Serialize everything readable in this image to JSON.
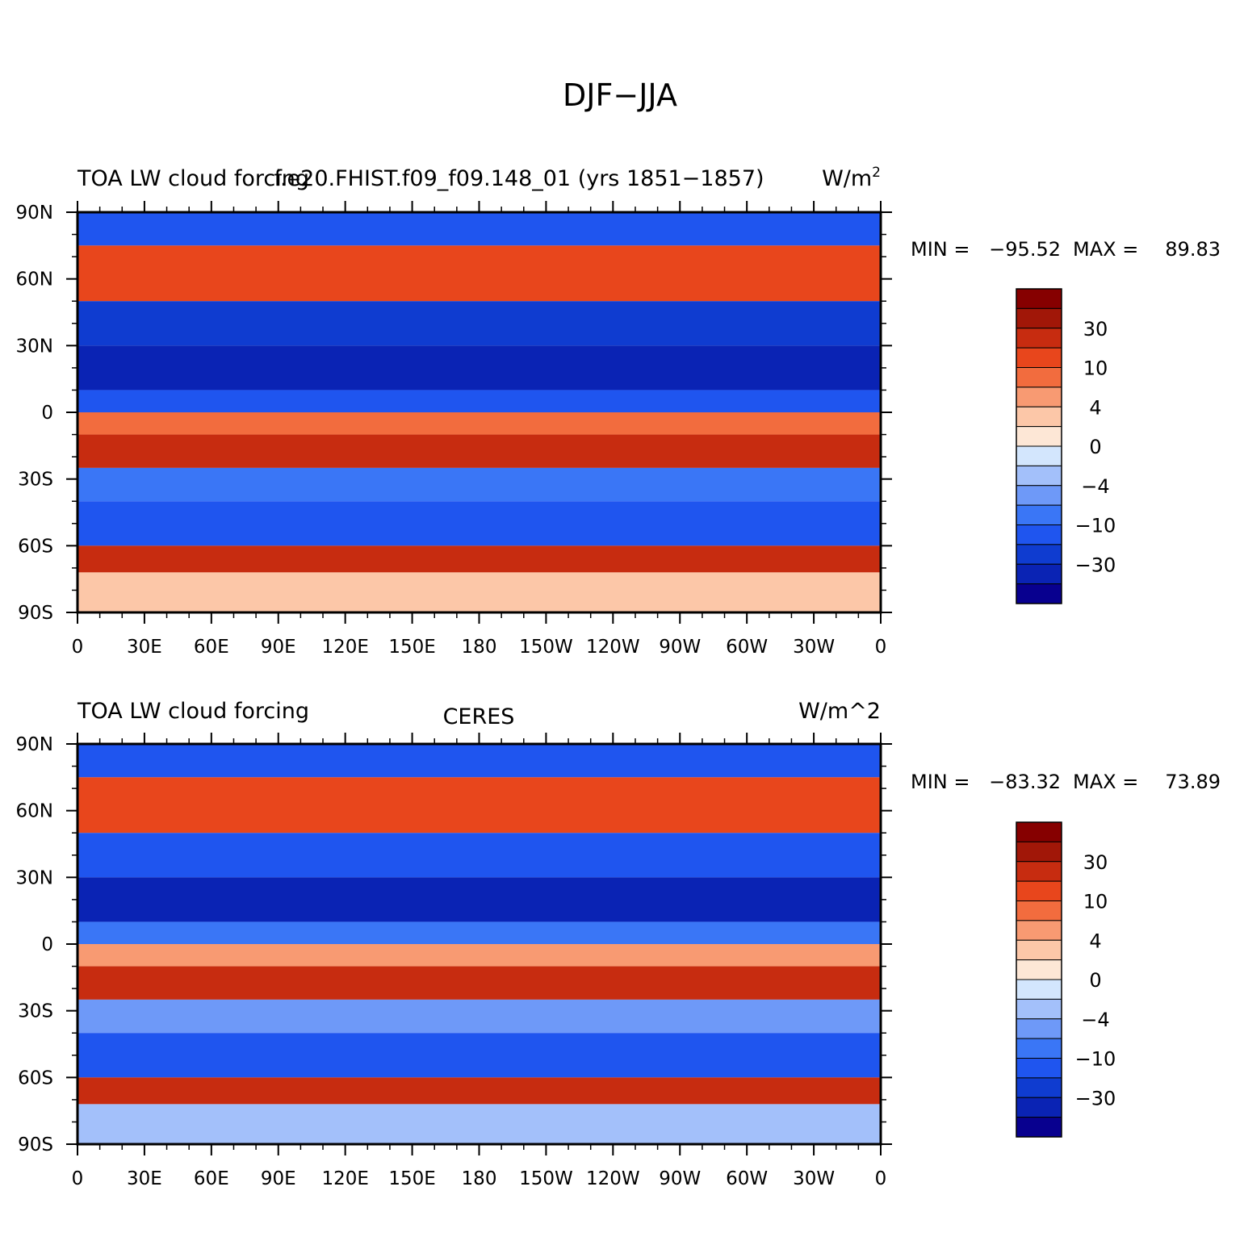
{
  "suptitle": "DJF−JJA",
  "colorbar": {
    "colors": [
      "#08008f",
      "#0a23b4",
      "#0f3cd0",
      "#1f55ef",
      "#3a76f6",
      "#6e99f8",
      "#a3c0fa",
      "#d3e6fd",
      "#fde7d6",
      "#fcc7a8",
      "#f89a72",
      "#f26c3e",
      "#e8461c",
      "#c72c10",
      "#a11708",
      "#860000"
    ],
    "ticks": [
      "30",
      "10",
      "4",
      "0",
      "−4",
      "−10",
      "−30"
    ]
  },
  "chart_data": [
    {
      "type": "heatmap",
      "left_title": "TOA LW cloud forcing",
      "center_title": "f.e20.FHIST.f09_f09.148_01 (yrs 1851−1857)",
      "units": "W/m",
      "units_superscript": "2",
      "stats": {
        "min_label": "MIN =",
        "min": "−95.52",
        "max_label": "MAX =",
        "max": "89.83"
      },
      "xticks": [
        "0",
        "30E",
        "60E",
        "90E",
        "120E",
        "150E",
        "180",
        "150W",
        "120W",
        "90W",
        "60W",
        "30W",
        "0"
      ],
      "yticks": [
        "90N",
        "60N",
        "30N",
        "0",
        "30S",
        "60S",
        "90S"
      ],
      "xlim": [
        0,
        360
      ],
      "ylim": [
        -90,
        90
      ],
      "levels": [
        -50,
        -40,
        -30,
        -20,
        -10,
        -6,
        -4,
        -2,
        0,
        2,
        4,
        6,
        10,
        20,
        30,
        40,
        50
      ],
      "zonal_bands": [
        {
          "lat": [
            75,
            90
          ],
          "value": -15
        },
        {
          "lat": [
            50,
            75
          ],
          "value": 18
        },
        {
          "lat": [
            30,
            50
          ],
          "value": -25
        },
        {
          "lat": [
            10,
            30
          ],
          "value": -35
        },
        {
          "lat": [
            0,
            10
          ],
          "value": -12
        },
        {
          "lat": [
            -10,
            0
          ],
          "value": 6
        },
        {
          "lat": [
            -25,
            -10
          ],
          "value": 28
        },
        {
          "lat": [
            -40,
            -25
          ],
          "value": -8
        },
        {
          "lat": [
            -60,
            -40
          ],
          "value": -20
        },
        {
          "lat": [
            -72,
            -60
          ],
          "value": 22
        },
        {
          "lat": [
            -90,
            -72
          ],
          "value": 3
        }
      ]
    },
    {
      "type": "heatmap",
      "left_title": "TOA LW cloud forcing",
      "center_title": "CERES",
      "units": "W/m^2",
      "stats": {
        "min_label": "MIN =",
        "min": "−83.32",
        "max_label": "MAX =",
        "max": "73.89"
      },
      "xticks": [
        "0",
        "30E",
        "60E",
        "90E",
        "120E",
        "150E",
        "180",
        "150W",
        "120W",
        "90W",
        "60W",
        "30W",
        "0"
      ],
      "yticks": [
        "90N",
        "60N",
        "30N",
        "0",
        "30S",
        "60S",
        "90S"
      ],
      "xlim": [
        0,
        360
      ],
      "ylim": [
        -90,
        90
      ],
      "levels": [
        -50,
        -40,
        -30,
        -20,
        -10,
        -6,
        -4,
        -2,
        0,
        2,
        4,
        6,
        10,
        20,
        30,
        40,
        50
      ],
      "zonal_bands": [
        {
          "lat": [
            75,
            90
          ],
          "value": -12
        },
        {
          "lat": [
            50,
            75
          ],
          "value": 15
        },
        {
          "lat": [
            30,
            50
          ],
          "value": -20
        },
        {
          "lat": [
            10,
            30
          ],
          "value": -32
        },
        {
          "lat": [
            0,
            10
          ],
          "value": -10
        },
        {
          "lat": [
            -10,
            0
          ],
          "value": 5
        },
        {
          "lat": [
            -25,
            -10
          ],
          "value": 25
        },
        {
          "lat": [
            -40,
            -25
          ],
          "value": -5
        },
        {
          "lat": [
            -60,
            -40
          ],
          "value": -15
        },
        {
          "lat": [
            -72,
            -60
          ],
          "value": 20
        },
        {
          "lat": [
            -90,
            -72
          ],
          "value": -3
        }
      ]
    }
  ]
}
